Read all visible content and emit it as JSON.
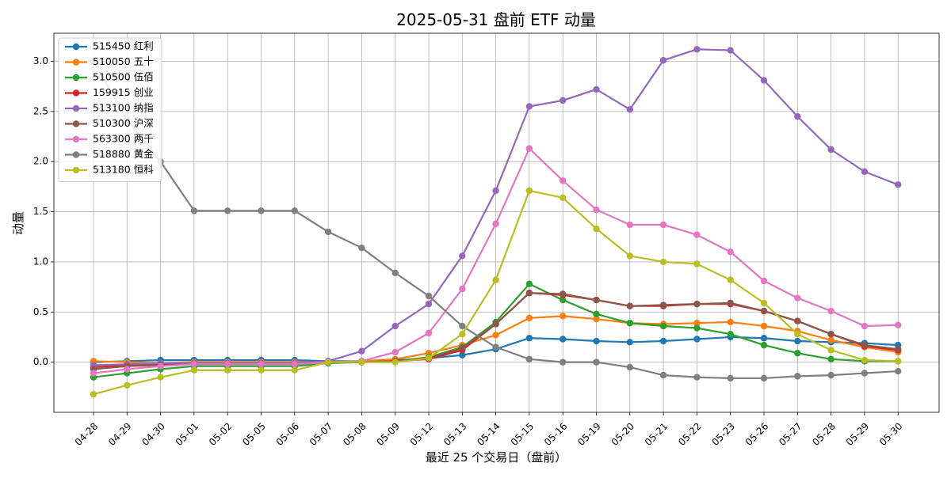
{
  "chart_data": {
    "type": "line",
    "title": "2025-05-31 盘前 ETF 动量",
    "xlabel": "最近 25 个交易日（盘前）",
    "ylabel": "动量",
    "categories": [
      "04-28",
      "04-29",
      "04-30",
      "05-01",
      "05-02",
      "05-05",
      "05-06",
      "05-07",
      "05-08",
      "05-09",
      "05-12",
      "05-13",
      "05-14",
      "05-15",
      "05-16",
      "05-19",
      "05-20",
      "05-21",
      "05-22",
      "05-23",
      "05-26",
      "05-27",
      "05-28",
      "05-29",
      "05-30"
    ],
    "ylim": [
      -0.5,
      3.28
    ],
    "yticks": [
      0.0,
      0.5,
      1.0,
      1.5,
      2.0,
      2.5,
      3.0
    ],
    "ytick_labels": [
      "0.0",
      "0.5",
      "1.0",
      "1.5",
      "2.0",
      "2.5",
      "3.0"
    ],
    "grid": true,
    "legend_position": "top-left",
    "series": [
      {
        "name": "515450 红利",
        "color": "#1f77b4",
        "values": [
          0.0,
          0.01,
          0.02,
          0.02,
          0.02,
          0.02,
          0.02,
          0.01,
          0.01,
          0.02,
          0.04,
          0.07,
          0.13,
          0.24,
          0.23,
          0.21,
          0.2,
          0.21,
          0.23,
          0.25,
          0.24,
          0.21,
          0.2,
          0.19,
          0.17
        ]
      },
      {
        "name": "510050 五十",
        "color": "#ff7f0e",
        "values": [
          0.01,
          0.0,
          -0.01,
          0.0,
          0.0,
          0.0,
          0.0,
          0.0,
          0.01,
          0.03,
          0.09,
          0.17,
          0.27,
          0.44,
          0.46,
          0.43,
          0.39,
          0.38,
          0.39,
          0.4,
          0.36,
          0.31,
          0.22,
          0.15,
          0.1
        ]
      },
      {
        "name": "510500 伍佰",
        "color": "#2ca02c",
        "values": [
          -0.15,
          -0.11,
          -0.07,
          -0.04,
          -0.04,
          -0.04,
          -0.04,
          -0.01,
          0.0,
          0.01,
          0.05,
          0.15,
          0.4,
          0.78,
          0.62,
          0.48,
          0.39,
          0.36,
          0.34,
          0.28,
          0.17,
          0.09,
          0.03,
          0.01,
          0.01
        ]
      },
      {
        "name": "159915 创业",
        "color": "#d62728",
        "values": [
          -0.05,
          -0.03,
          -0.02,
          -0.01,
          -0.01,
          -0.01,
          -0.01,
          0.0,
          0.0,
          0.01,
          0.03,
          0.12,
          0.38,
          0.69,
          0.67,
          0.62,
          0.56,
          0.56,
          0.58,
          0.58,
          0.51,
          0.41,
          0.28,
          0.16,
          0.12
        ]
      },
      {
        "name": "513100 纳指",
        "color": "#9467bd",
        "values": [
          -0.03,
          -0.02,
          -0.01,
          -0.01,
          -0.01,
          -0.01,
          -0.01,
          0.01,
          0.11,
          0.36,
          0.58,
          1.06,
          1.71,
          2.55,
          2.61,
          2.72,
          2.52,
          3.01,
          3.12,
          3.11,
          2.81,
          2.45,
          2.12,
          1.9,
          1.77
        ]
      },
      {
        "name": "510300 沪深",
        "color": "#8c564b",
        "values": [
          -0.07,
          -0.04,
          -0.03,
          -0.02,
          -0.02,
          -0.02,
          -0.02,
          0.0,
          0.0,
          0.01,
          0.04,
          0.14,
          0.38,
          0.69,
          0.68,
          0.62,
          0.56,
          0.57,
          0.58,
          0.59,
          0.51,
          0.41,
          0.28,
          0.17,
          0.13
        ]
      },
      {
        "name": "563300 两千",
        "color": "#e377c2",
        "values": [
          -0.11,
          -0.07,
          -0.04,
          -0.02,
          -0.02,
          -0.02,
          -0.02,
          0.0,
          0.01,
          0.1,
          0.29,
          0.73,
          1.38,
          2.13,
          1.81,
          1.52,
          1.37,
          1.37,
          1.27,
          1.1,
          0.81,
          0.64,
          0.51,
          0.36,
          0.37
        ]
      },
      {
        "name": "518880 黄金",
        "color": "#7f7f7f",
        "values": [
          3.0,
          2.42,
          2.0,
          1.51,
          1.51,
          1.51,
          1.51,
          1.3,
          1.14,
          0.89,
          0.66,
          0.36,
          0.15,
          0.03,
          0.0,
          0.0,
          -0.05,
          -0.13,
          -0.15,
          -0.16,
          -0.16,
          -0.14,
          -0.13,
          -0.11,
          -0.09
        ]
      },
      {
        "name": "513180 恒科",
        "color": "#bcbd22",
        "values": [
          -0.32,
          -0.23,
          -0.15,
          -0.08,
          -0.08,
          -0.08,
          -0.08,
          0.0,
          0.0,
          0.0,
          0.04,
          0.28,
          0.82,
          1.71,
          1.64,
          1.33,
          1.06,
          1.0,
          0.98,
          0.82,
          0.59,
          0.28,
          0.12,
          0.02,
          0.01
        ]
      }
    ]
  }
}
